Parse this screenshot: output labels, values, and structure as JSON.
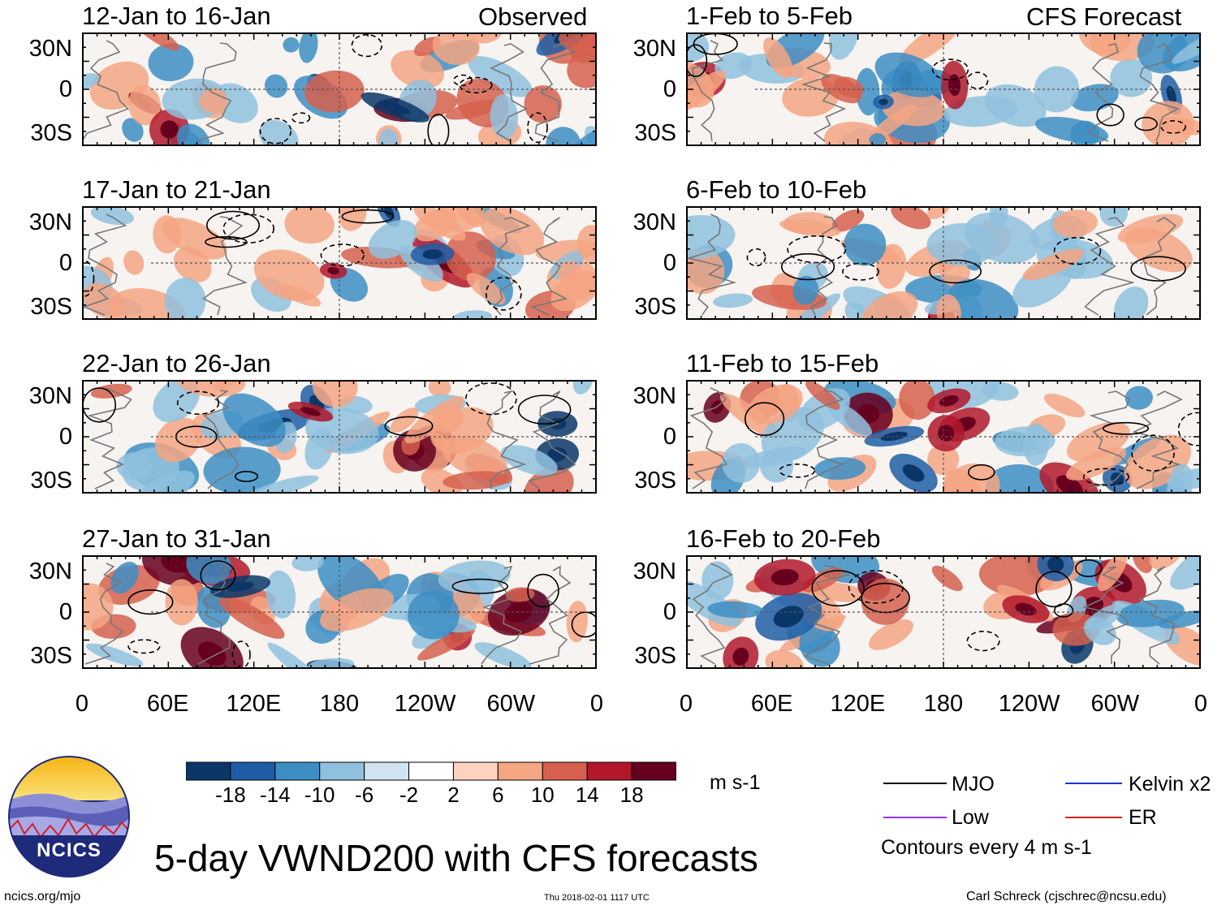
{
  "chart_data": {
    "type": "heatmap",
    "title": "5-day VWND200 with CFS forecasts",
    "variable": "VWND200",
    "units": "m s-1",
    "left_column_label": "Observed",
    "right_column_label": "CFS Forecast",
    "latitude_ticks": [
      "30N",
      "0",
      "30S"
    ],
    "longitude_ticks": [
      "0",
      "60E",
      "120E",
      "180",
      "120W",
      "60W",
      "0"
    ],
    "lat_range": [
      -40,
      40
    ],
    "lon_range": [
      0,
      360
    ],
    "panels": [
      {
        "column": "Observed",
        "period": "12-Jan to 16-Jan"
      },
      {
        "column": "Observed",
        "period": "17-Jan to 21-Jan"
      },
      {
        "column": "Observed",
        "period": "22-Jan to 26-Jan"
      },
      {
        "column": "Observed",
        "period": "27-Jan to 31-Jan"
      },
      {
        "column": "CFS Forecast",
        "period": "1-Feb to 5-Feb"
      },
      {
        "column": "CFS Forecast",
        "period": "6-Feb to 10-Feb"
      },
      {
        "column": "CFS Forecast",
        "period": "11-Feb to 15-Feb"
      },
      {
        "column": "CFS Forecast",
        "period": "16-Feb to 20-Feb"
      }
    ],
    "colorbar": {
      "tick_labels": [
        "-18",
        "-14",
        "-10",
        "-6",
        "-2",
        "2",
        "6",
        "10",
        "14",
        "18"
      ],
      "colors": [
        "#0b3768",
        "#1f5ea6",
        "#3d8ec4",
        "#8fc1de",
        "#cfe4f0",
        "#ffffff",
        "#fdd3c0",
        "#f4a582",
        "#d6604d",
        "#b2182b",
        "#67001f"
      ],
      "units_label": "m s-1"
    },
    "legend": [
      {
        "label": "MJO",
        "color": "#000000"
      },
      {
        "label": "Kelvin x2",
        "color": "#1f2fd6"
      },
      {
        "label": "Low",
        "color": "#9b30ff"
      },
      {
        "label": "ER",
        "color": "#e0201b"
      }
    ],
    "contour_note": "Contours every 4 m s-1"
  },
  "footer": {
    "logo_text": "NCICS",
    "url": "ncics.org/mjo",
    "timestamp": "Thu 2018-02-01 1117 UTC",
    "author": "Carl Schreck (cjschrec@ncsu.edu)"
  }
}
